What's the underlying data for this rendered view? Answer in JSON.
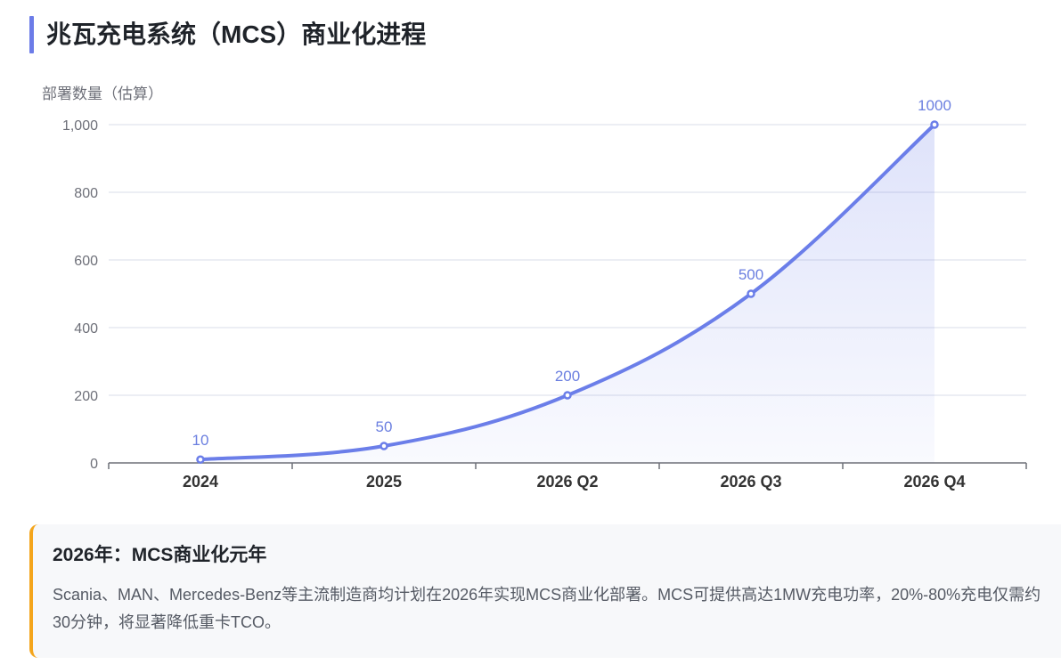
{
  "page": {
    "title": "兆瓦充电系统（MCS）商业化进程",
    "accent_color": "#6c7ce8"
  },
  "chart_data": {
    "type": "area",
    "categories": [
      "2024",
      "2025",
      "2026 Q2",
      "2026 Q3",
      "2026 Q4"
    ],
    "series": [
      {
        "values": [
          10,
          50,
          200,
          500,
          1000
        ],
        "color": "#6b7ee9"
      }
    ],
    "data_labels": [
      "10",
      "50",
      "200",
      "500",
      "1000"
    ],
    "ylabel": "部署数量（估算）",
    "ylim": [
      0,
      1000
    ],
    "yticks": [
      0,
      200,
      400,
      600,
      800,
      1000
    ],
    "ytick_labels": [
      "0",
      "200",
      "400",
      "600",
      "800",
      "1,000"
    ],
    "grid": true,
    "smooth": true
  },
  "note": {
    "title": "2026年：MCS商业化元年",
    "body": "Scania、MAN、Mercedes-Benz等主流制造商均计划在2026年实现MCS商业化部署。MCS可提供高达1MW充电功率，20%-80%充电仅需约30分钟，将显著降低重卡TCO。",
    "border_color": "#f4a51c"
  }
}
